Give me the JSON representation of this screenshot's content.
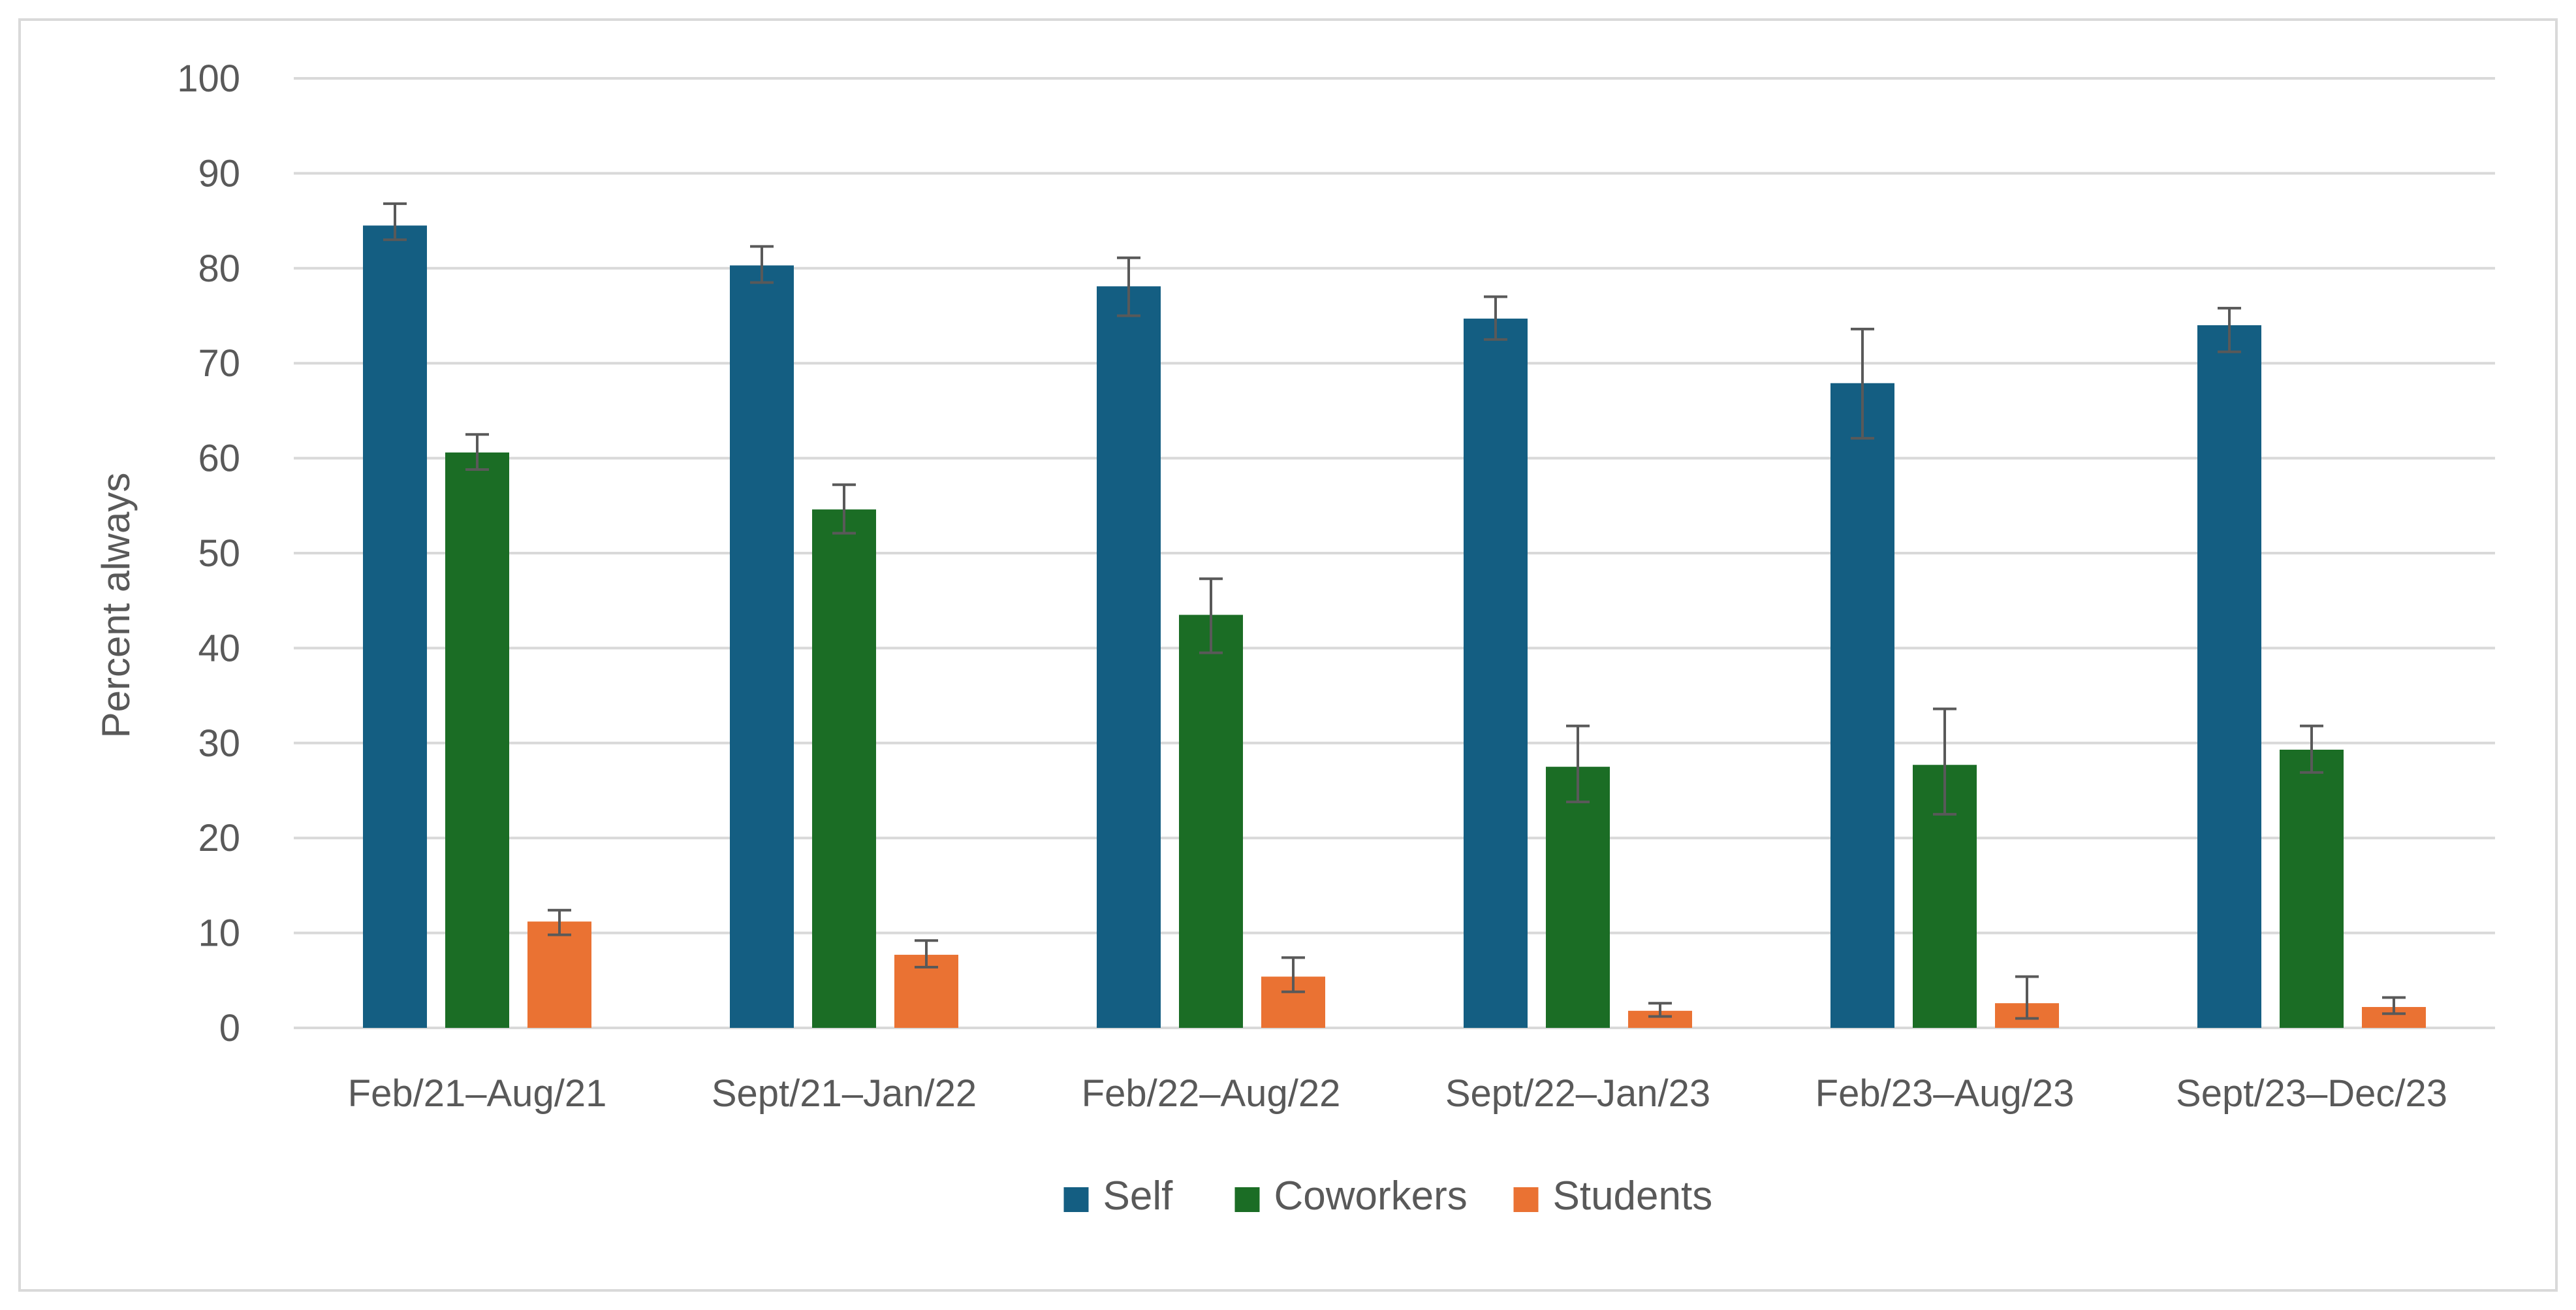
{
  "chart_data": {
    "type": "bar",
    "title": "",
    "xlabel": "",
    "ylabel": "Percent always",
    "ylim": [
      0,
      100
    ],
    "yticks": [
      0,
      10,
      20,
      30,
      40,
      50,
      60,
      70,
      80,
      90,
      100
    ],
    "grid": true,
    "legend_position": "bottom",
    "categories": [
      "Feb/21–Aug/21",
      "Sept/21–Jan/22",
      "Feb/22–Aug/22",
      "Sept/22–Jan/23",
      "Feb/23–Aug/23",
      "Sept/23–Dec/23"
    ],
    "series": [
      {
        "name": "Self",
        "color": "#145e82",
        "values": [
          84.5,
          80.3,
          78.1,
          74.7,
          67.9,
          74.0
        ],
        "error_low": [
          83.0,
          78.5,
          75.0,
          72.5,
          62.1,
          71.2
        ],
        "error_high": [
          86.8,
          82.3,
          81.1,
          77.0,
          73.6,
          75.8
        ]
      },
      {
        "name": "Coworkers",
        "color": "#1b6d25",
        "values": [
          60.6,
          54.6,
          43.5,
          27.5,
          27.7,
          29.3
        ],
        "error_low": [
          58.8,
          52.1,
          39.5,
          23.8,
          22.5,
          26.9
        ],
        "error_high": [
          62.5,
          57.2,
          47.3,
          31.8,
          33.6,
          31.8
        ]
      },
      {
        "name": "Students",
        "color": "#ea7233",
        "values": [
          11.2,
          7.7,
          5.4,
          1.8,
          2.6,
          2.2
        ],
        "error_low": [
          9.8,
          6.4,
          3.8,
          1.2,
          1.0,
          1.5
        ],
        "error_high": [
          12.4,
          9.2,
          7.4,
          2.6,
          5.4,
          3.2
        ]
      }
    ],
    "colors": {
      "gridline": "#d9d9d9",
      "axis_line": "#d9d9d9",
      "error_bar": "#595959",
      "text": "#595959",
      "border": "#d9d9d9"
    }
  }
}
